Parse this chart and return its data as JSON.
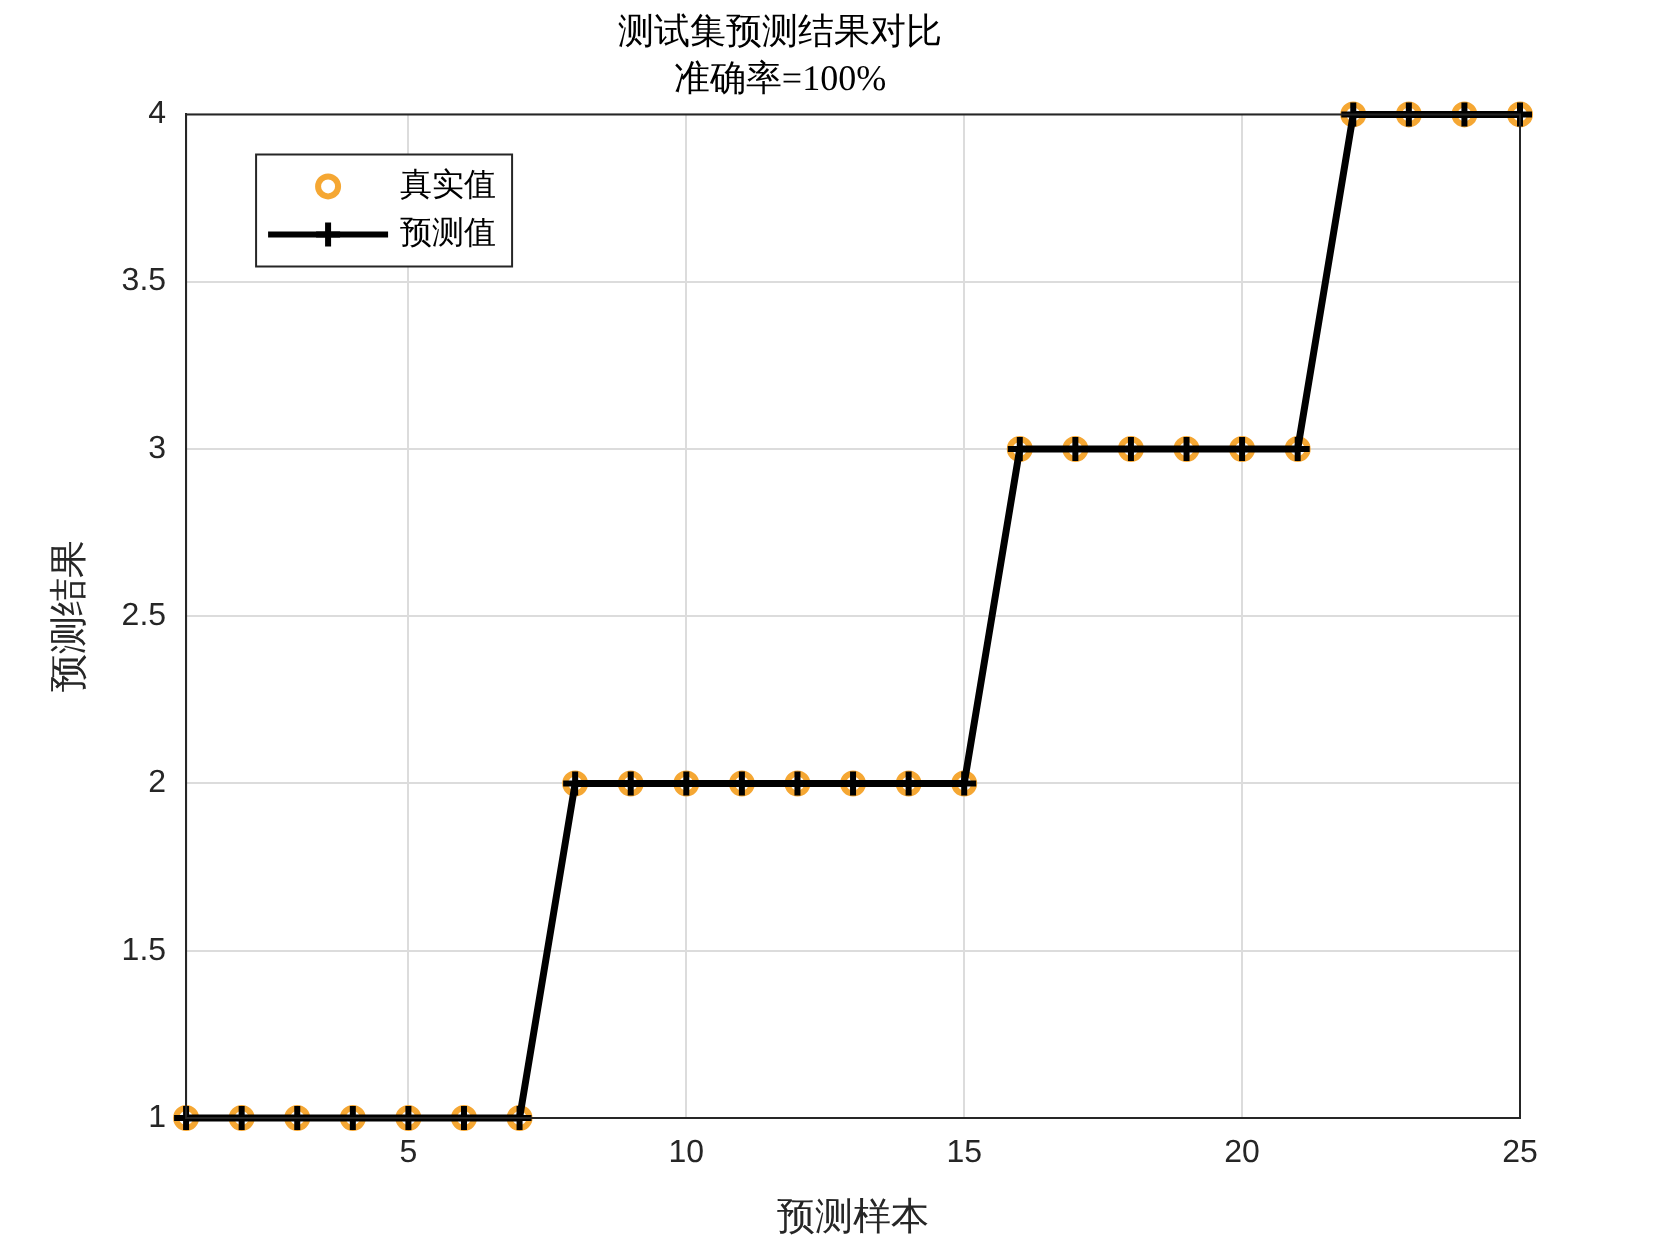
{
  "chart_data": {
    "type": "scatter",
    "title": "测试集预测结果对比",
    "subtitle": "准确率=100%",
    "xlabel": "预测样本",
    "ylabel": "预测结果",
    "x": [
      1,
      2,
      3,
      4,
      5,
      6,
      7,
      8,
      9,
      10,
      11,
      12,
      13,
      14,
      15,
      16,
      17,
      18,
      19,
      20,
      21,
      22,
      23,
      24,
      25
    ],
    "series": [
      {
        "name": "真实值",
        "type": "scatter",
        "marker": "circle",
        "color": "#f5a733",
        "values": [
          1,
          1,
          1,
          1,
          1,
          1,
          1,
          2,
          2,
          2,
          2,
          2,
          2,
          2,
          2,
          3,
          3,
          3,
          3,
          3,
          3,
          4,
          4,
          4,
          4
        ]
      },
      {
        "name": "预测值",
        "type": "line",
        "marker": "cross",
        "line_style": "solid",
        "color": "#000000",
        "values": [
          1,
          1,
          1,
          1,
          1,
          1,
          1,
          2,
          2,
          2,
          2,
          2,
          2,
          2,
          2,
          3,
          3,
          3,
          3,
          3,
          3,
          4,
          4,
          4,
          4
        ]
      }
    ],
    "xlim": [
      1,
      25
    ],
    "xticks": [
      5,
      10,
      15,
      20,
      25
    ],
    "ylim": [
      1,
      4
    ],
    "yticks": [
      1,
      1.5,
      2,
      2.5,
      3,
      3.5,
      4
    ],
    "grid": true,
    "legend": "top left"
  }
}
